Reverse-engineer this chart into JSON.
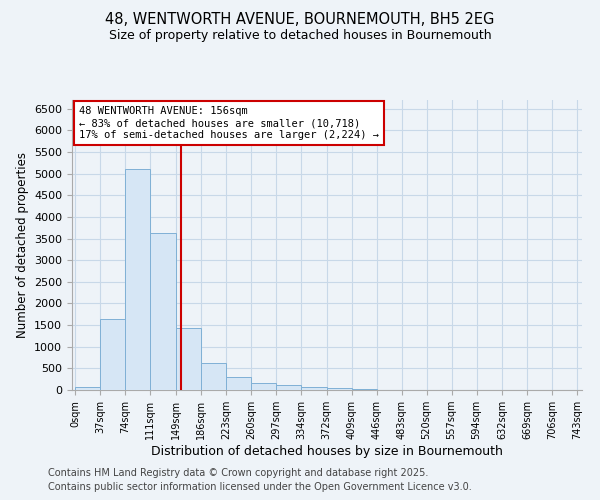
{
  "title1": "48, WENTWORTH AVENUE, BOURNEMOUTH, BH5 2EG",
  "title2": "Size of property relative to detached houses in Bournemouth",
  "xlabel": "Distribution of detached houses by size in Bournemouth",
  "ylabel": "Number of detached properties",
  "bin_edges": [
    0,
    37,
    74,
    111,
    149,
    186,
    223,
    260,
    297,
    334,
    372,
    409,
    446,
    483,
    520,
    557,
    594,
    632,
    669,
    706,
    743
  ],
  "bar_heights": [
    75,
    1650,
    5100,
    3620,
    1430,
    620,
    310,
    155,
    120,
    75,
    35,
    20,
    5,
    0,
    0,
    0,
    0,
    0,
    0,
    0
  ],
  "bar_color": "#d6e6f5",
  "bar_edgecolor": "#7fb0d5",
  "vline_x": 156,
  "vline_color": "#cc0000",
  "annotation_text": "48 WENTWORTH AVENUE: 156sqm\n← 83% of detached houses are smaller (10,718)\n17% of semi-detached houses are larger (2,224) →",
  "annotation_box_edgecolor": "#cc0000",
  "annotation_box_facecolor": "#ffffff",
  "ylim": [
    0,
    6700
  ],
  "yticks": [
    0,
    500,
    1000,
    1500,
    2000,
    2500,
    3000,
    3500,
    4000,
    4500,
    5000,
    5500,
    6000,
    6500
  ],
  "grid_color": "#c8d8e8",
  "footer1": "Contains HM Land Registry data © Crown copyright and database right 2025.",
  "footer2": "Contains public sector information licensed under the Open Government Licence v3.0.",
  "background_color": "#eef3f8",
  "plot_bg_color": "#eef3f8"
}
